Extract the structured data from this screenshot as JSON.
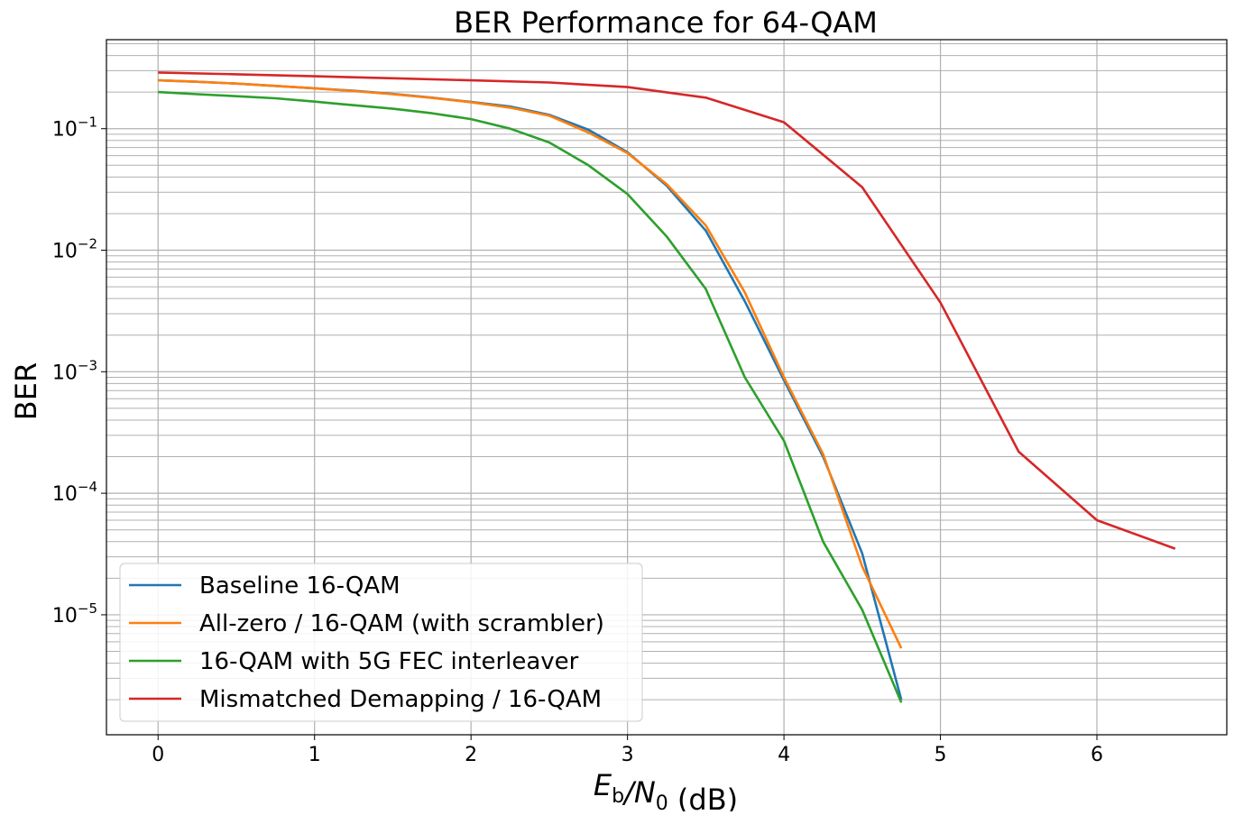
{
  "chart_data": {
    "type": "line",
    "title": "BER Performance for 64-QAM",
    "xlabel": "E_b/N_0 (dB)",
    "ylabel": "BER",
    "xlim": [
      -0.33,
      6.83
    ],
    "ylim": [
      1.03e-06,
      0.54
    ],
    "yscale": "log",
    "grid": "major and minor",
    "legend_position": "lower-left",
    "x_ticks": [
      "0",
      "1",
      "2",
      "3",
      "4",
      "5",
      "6"
    ],
    "y_ticks": [
      {
        "value": 0.1,
        "base": "10",
        "exp": "−1"
      },
      {
        "value": 0.01,
        "base": "10",
        "exp": "−2"
      },
      {
        "value": 0.001,
        "base": "10",
        "exp": "−3"
      },
      {
        "value": 0.0001,
        "base": "10",
        "exp": "−4"
      },
      {
        "value": 1e-05,
        "base": "10",
        "exp": "−5"
      }
    ],
    "series": [
      {
        "name": "Baseline 16-QAM",
        "color": "#1f77b4",
        "x": [
          0,
          0.25,
          0.5,
          0.75,
          1,
          1.25,
          1.5,
          1.75,
          2,
          2.25,
          2.5,
          2.75,
          3,
          3.25,
          3.5,
          3.75,
          4,
          4.25,
          4.5,
          4.75
        ],
        "y": [
          0.25,
          0.243,
          0.235,
          0.225,
          0.215,
          0.205,
          0.193,
          0.18,
          0.166,
          0.152,
          0.13,
          0.098,
          0.064,
          0.034,
          0.0145,
          0.0038,
          0.00085,
          0.0002,
          3.2e-05,
          2e-06
        ]
      },
      {
        "name": "All-zero / 16-QAM (with scrambler)",
        "color": "#ff7f0e",
        "x": [
          0,
          0.25,
          0.5,
          0.75,
          1,
          1.25,
          1.5,
          1.75,
          2,
          2.25,
          2.5,
          2.75,
          3,
          3.25,
          3.5,
          3.75,
          4,
          4.25,
          4.5,
          4.75
        ],
        "y": [
          0.25,
          0.243,
          0.235,
          0.225,
          0.215,
          0.204,
          0.192,
          0.179,
          0.165,
          0.149,
          0.128,
          0.093,
          0.063,
          0.035,
          0.016,
          0.0045,
          0.0009,
          0.00021,
          2.5e-05,
          5.3e-06
        ]
      },
      {
        "name": "16-QAM with 5G FEC interleaver",
        "color": "#2ca02c",
        "x": [
          0,
          0.25,
          0.5,
          0.75,
          1,
          1.25,
          1.5,
          1.75,
          2,
          2.25,
          2.5,
          2.75,
          3,
          3.25,
          3.5,
          3.75,
          4,
          4.25,
          4.5,
          4.75
        ],
        "y": [
          0.2,
          0.192,
          0.185,
          0.178,
          0.167,
          0.156,
          0.146,
          0.134,
          0.12,
          0.1,
          0.077,
          0.05,
          0.029,
          0.013,
          0.0048,
          0.0009,
          0.00027,
          4e-05,
          1.1e-05,
          1.9e-06
        ]
      },
      {
        "name": "Mismatched Demapping / 16-QAM",
        "color": "#d62728",
        "x": [
          0,
          0.5,
          1,
          1.5,
          2,
          2.5,
          3,
          3.5,
          4,
          4.5,
          5,
          5.5,
          6,
          6.5
        ],
        "y": [
          0.29,
          0.28,
          0.27,
          0.26,
          0.25,
          0.24,
          0.22,
          0.18,
          0.113,
          0.033,
          0.0037,
          0.00022,
          6e-05,
          3.5e-05
        ]
      }
    ]
  }
}
